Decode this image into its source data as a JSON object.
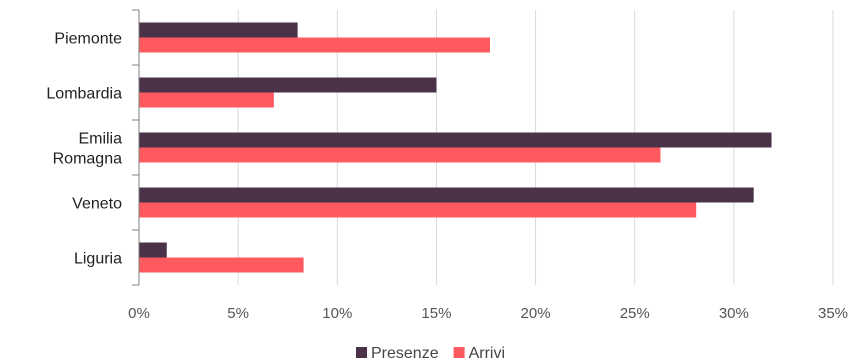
{
  "chart_data": {
    "type": "bar",
    "orientation": "horizontal",
    "title": "",
    "xlabel": "",
    "ylabel": "",
    "categories": [
      [
        "Piemonte"
      ],
      [
        "Lombardia"
      ],
      [
        "Emilia",
        "Romagna"
      ],
      [
        "Veneto"
      ],
      [
        "Liguria"
      ]
    ],
    "series": [
      {
        "name": "Presenze",
        "color": "#4a3348",
        "values": [
          8.0,
          15.0,
          31.9,
          31.0,
          1.4
        ]
      },
      {
        "name": "Arrivi",
        "color": "#ff5a5f",
        "values": [
          17.7,
          6.8,
          26.3,
          28.1,
          8.3
        ]
      }
    ],
    "xlim": [
      0,
      35
    ],
    "x_ticks": [
      "0%",
      "5%",
      "10%",
      "15%",
      "20%",
      "25%",
      "30%",
      "35%"
    ],
    "grid": true,
    "legend_position": "bottom"
  }
}
